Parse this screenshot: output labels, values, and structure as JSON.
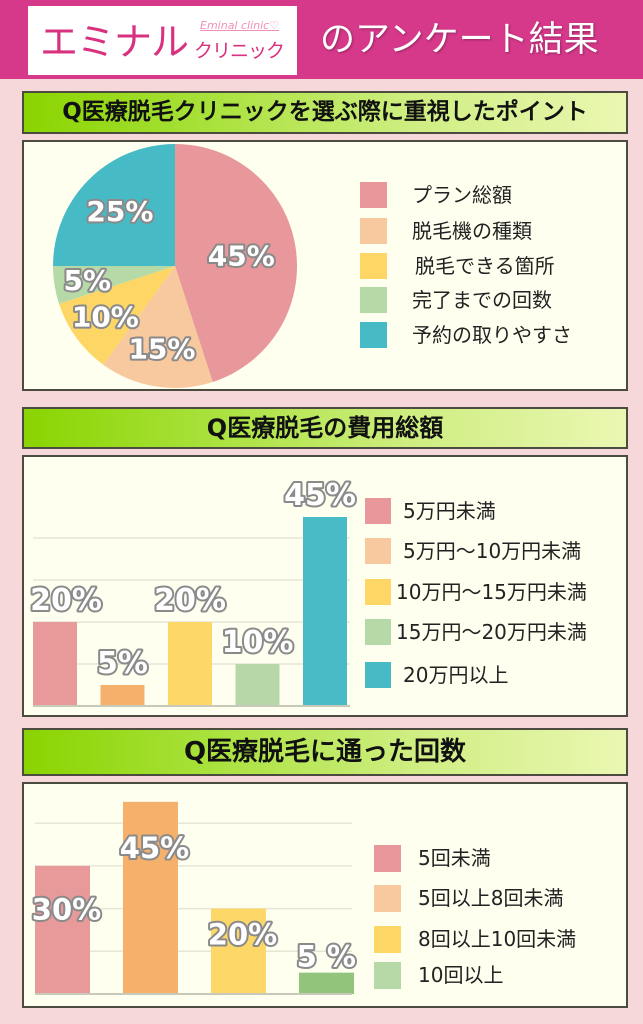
{
  "banner": {
    "logo": {
      "main": "エミナル",
      "sub": "クリニック",
      "en": "Eminal clinic♡"
    },
    "title": "のアンケート結果",
    "color": "#D6388A"
  },
  "surveys": [
    {
      "question": "Q医療脱毛クリニックを選ぶ際に重視したポイント",
      "legend": [
        {
          "label": "プラン総額",
          "color": "#E8989A"
        },
        {
          "label": "脱毛機の種類",
          "color": "#F8C89E"
        },
        {
          "label": "脱毛できる箇所",
          "color": "#FDD665"
        },
        {
          "label": "完了までの回数",
          "color": "#B6D9A8"
        },
        {
          "label": "予約の取りやすさ",
          "color": "#46BBC6"
        }
      ]
    },
    {
      "question": "Q医療脱毛の費用総額",
      "legend": [
        {
          "label": "5万円未満",
          "color": "#E8989A"
        },
        {
          "label": "5万円〜10万円未満",
          "color": "#F8C89E"
        },
        {
          "label": "10万円〜15万円未満",
          "color": "#FDD665"
        },
        {
          "label": "15万円〜20万円未満",
          "color": "#B6D9A8"
        },
        {
          "label": "20万円以上",
          "color": "#46BBC6"
        }
      ]
    },
    {
      "question": "Q医療脱毛に通った回数",
      "legend": [
        {
          "label": "5回未満",
          "color": "#E8989A"
        },
        {
          "label": "5回以上8回未満",
          "color": "#F8C89E"
        },
        {
          "label": "8回以上10回未満",
          "color": "#FDD665"
        },
        {
          "label": "10回以上",
          "color": "#B6D9A8"
        }
      ]
    }
  ],
  "chart_data": [
    {
      "type": "pie",
      "title": "Q医療脱毛クリニックを選ぶ際に重視したポイント",
      "categories": [
        "プラン総額",
        "脱毛機の種類",
        "脱毛できる箇所",
        "完了までの回数",
        "予約の取りやすさ"
      ],
      "values": [
        45,
        15,
        10,
        5,
        25
      ],
      "labels": [
        "45%",
        "15%",
        "10%",
        "5%",
        "25%"
      ],
      "colors": [
        "#E8989A",
        "#F8C89E",
        "#FDD665",
        "#B6D9A8",
        "#46BBC6"
      ],
      "unit": "%",
      "start_angle": "12 o'clock",
      "direction": "clockwise",
      "legend_position": "right"
    },
    {
      "type": "bar",
      "title": "Q医療脱毛の費用総額",
      "categories": [
        "5万円未満",
        "5万円〜10万円未満",
        "10万円〜15万円未満",
        "15万円〜20万円未満",
        "20万円以上"
      ],
      "values": [
        20,
        5,
        20,
        10,
        45
      ],
      "labels": [
        "20%",
        "5%",
        "20%",
        "10%",
        "45%"
      ],
      "colors": [
        "#E89A9A",
        "#F5B16B",
        "#FDD767",
        "#B7D7A8",
        "#48BBC7"
      ],
      "unit": "%",
      "xlabel": "",
      "ylabel": "",
      "ylim": [
        0,
        50
      ],
      "grid": true,
      "gridlines": [
        10,
        20,
        30,
        40
      ],
      "legend_position": "right"
    },
    {
      "type": "bar",
      "title": "Q医療脱毛に通った回数",
      "categories": [
        "5回未満",
        "5回以上8回未満",
        "8回以上10回未満",
        "10回以上"
      ],
      "values": [
        30,
        45,
        20,
        5
      ],
      "labels": [
        "30%",
        "45%",
        "20%",
        "5 %"
      ],
      "colors": [
        "#E89A9A",
        "#F5B16B",
        "#FDD767",
        "#92C47C"
      ],
      "unit": "%",
      "xlabel": "",
      "ylabel": "",
      "ylim": [
        0,
        50
      ],
      "grid": true,
      "gridlines": [
        10,
        20,
        30,
        40
      ],
      "legend_position": "right"
    }
  ]
}
